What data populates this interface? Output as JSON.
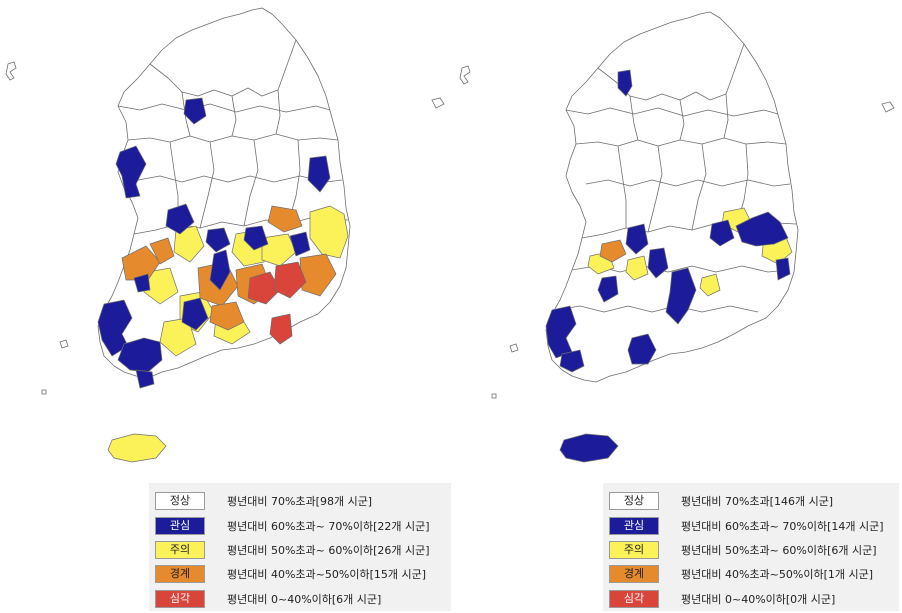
{
  "colors": {
    "normal": "#ffffff",
    "attention": "#1c1c9a",
    "caution": "#fbf25a",
    "alert": "#e68a2e",
    "serious": "#d9443b",
    "border": "#6e6e6e",
    "legend_bg": "#f1f1f1"
  },
  "maps": [
    {
      "legend": [
        {
          "level": "normal",
          "label": "정상",
          "text": "평년대비 70%초과[98개 시군]"
        },
        {
          "level": "attention",
          "label": "관심",
          "text": "평년대비 60%초과~ 70%이하[22개 시군]"
        },
        {
          "level": "caution",
          "label": "주의",
          "text": "평년대비 50%초과~ 60%이하[26개 시군]"
        },
        {
          "level": "alert",
          "label": "경계",
          "text": "평년대비 40%초과~50%이하[15개 시군]"
        },
        {
          "level": "serious",
          "label": "심각",
          "text": "평년대비 0~40%이하[6개 시군]"
        }
      ]
    },
    {
      "legend": [
        {
          "level": "normal",
          "label": "정상",
          "text": "평년대비 70%초과[146개 시군]"
        },
        {
          "level": "attention",
          "label": "관심",
          "text": "평년대비 60%초과~ 70%이하[14개 시군]"
        },
        {
          "level": "caution",
          "label": "주의",
          "text": "평년대비 50%초과~ 60%이하[6개 시군]"
        },
        {
          "level": "alert",
          "label": "경계",
          "text": "평년대비 40%초과~50%이하[1개 시군]"
        },
        {
          "level": "serious",
          "label": "심각",
          "text": "평년대비 0~40%이하[0개 시군]"
        }
      ]
    }
  ]
}
